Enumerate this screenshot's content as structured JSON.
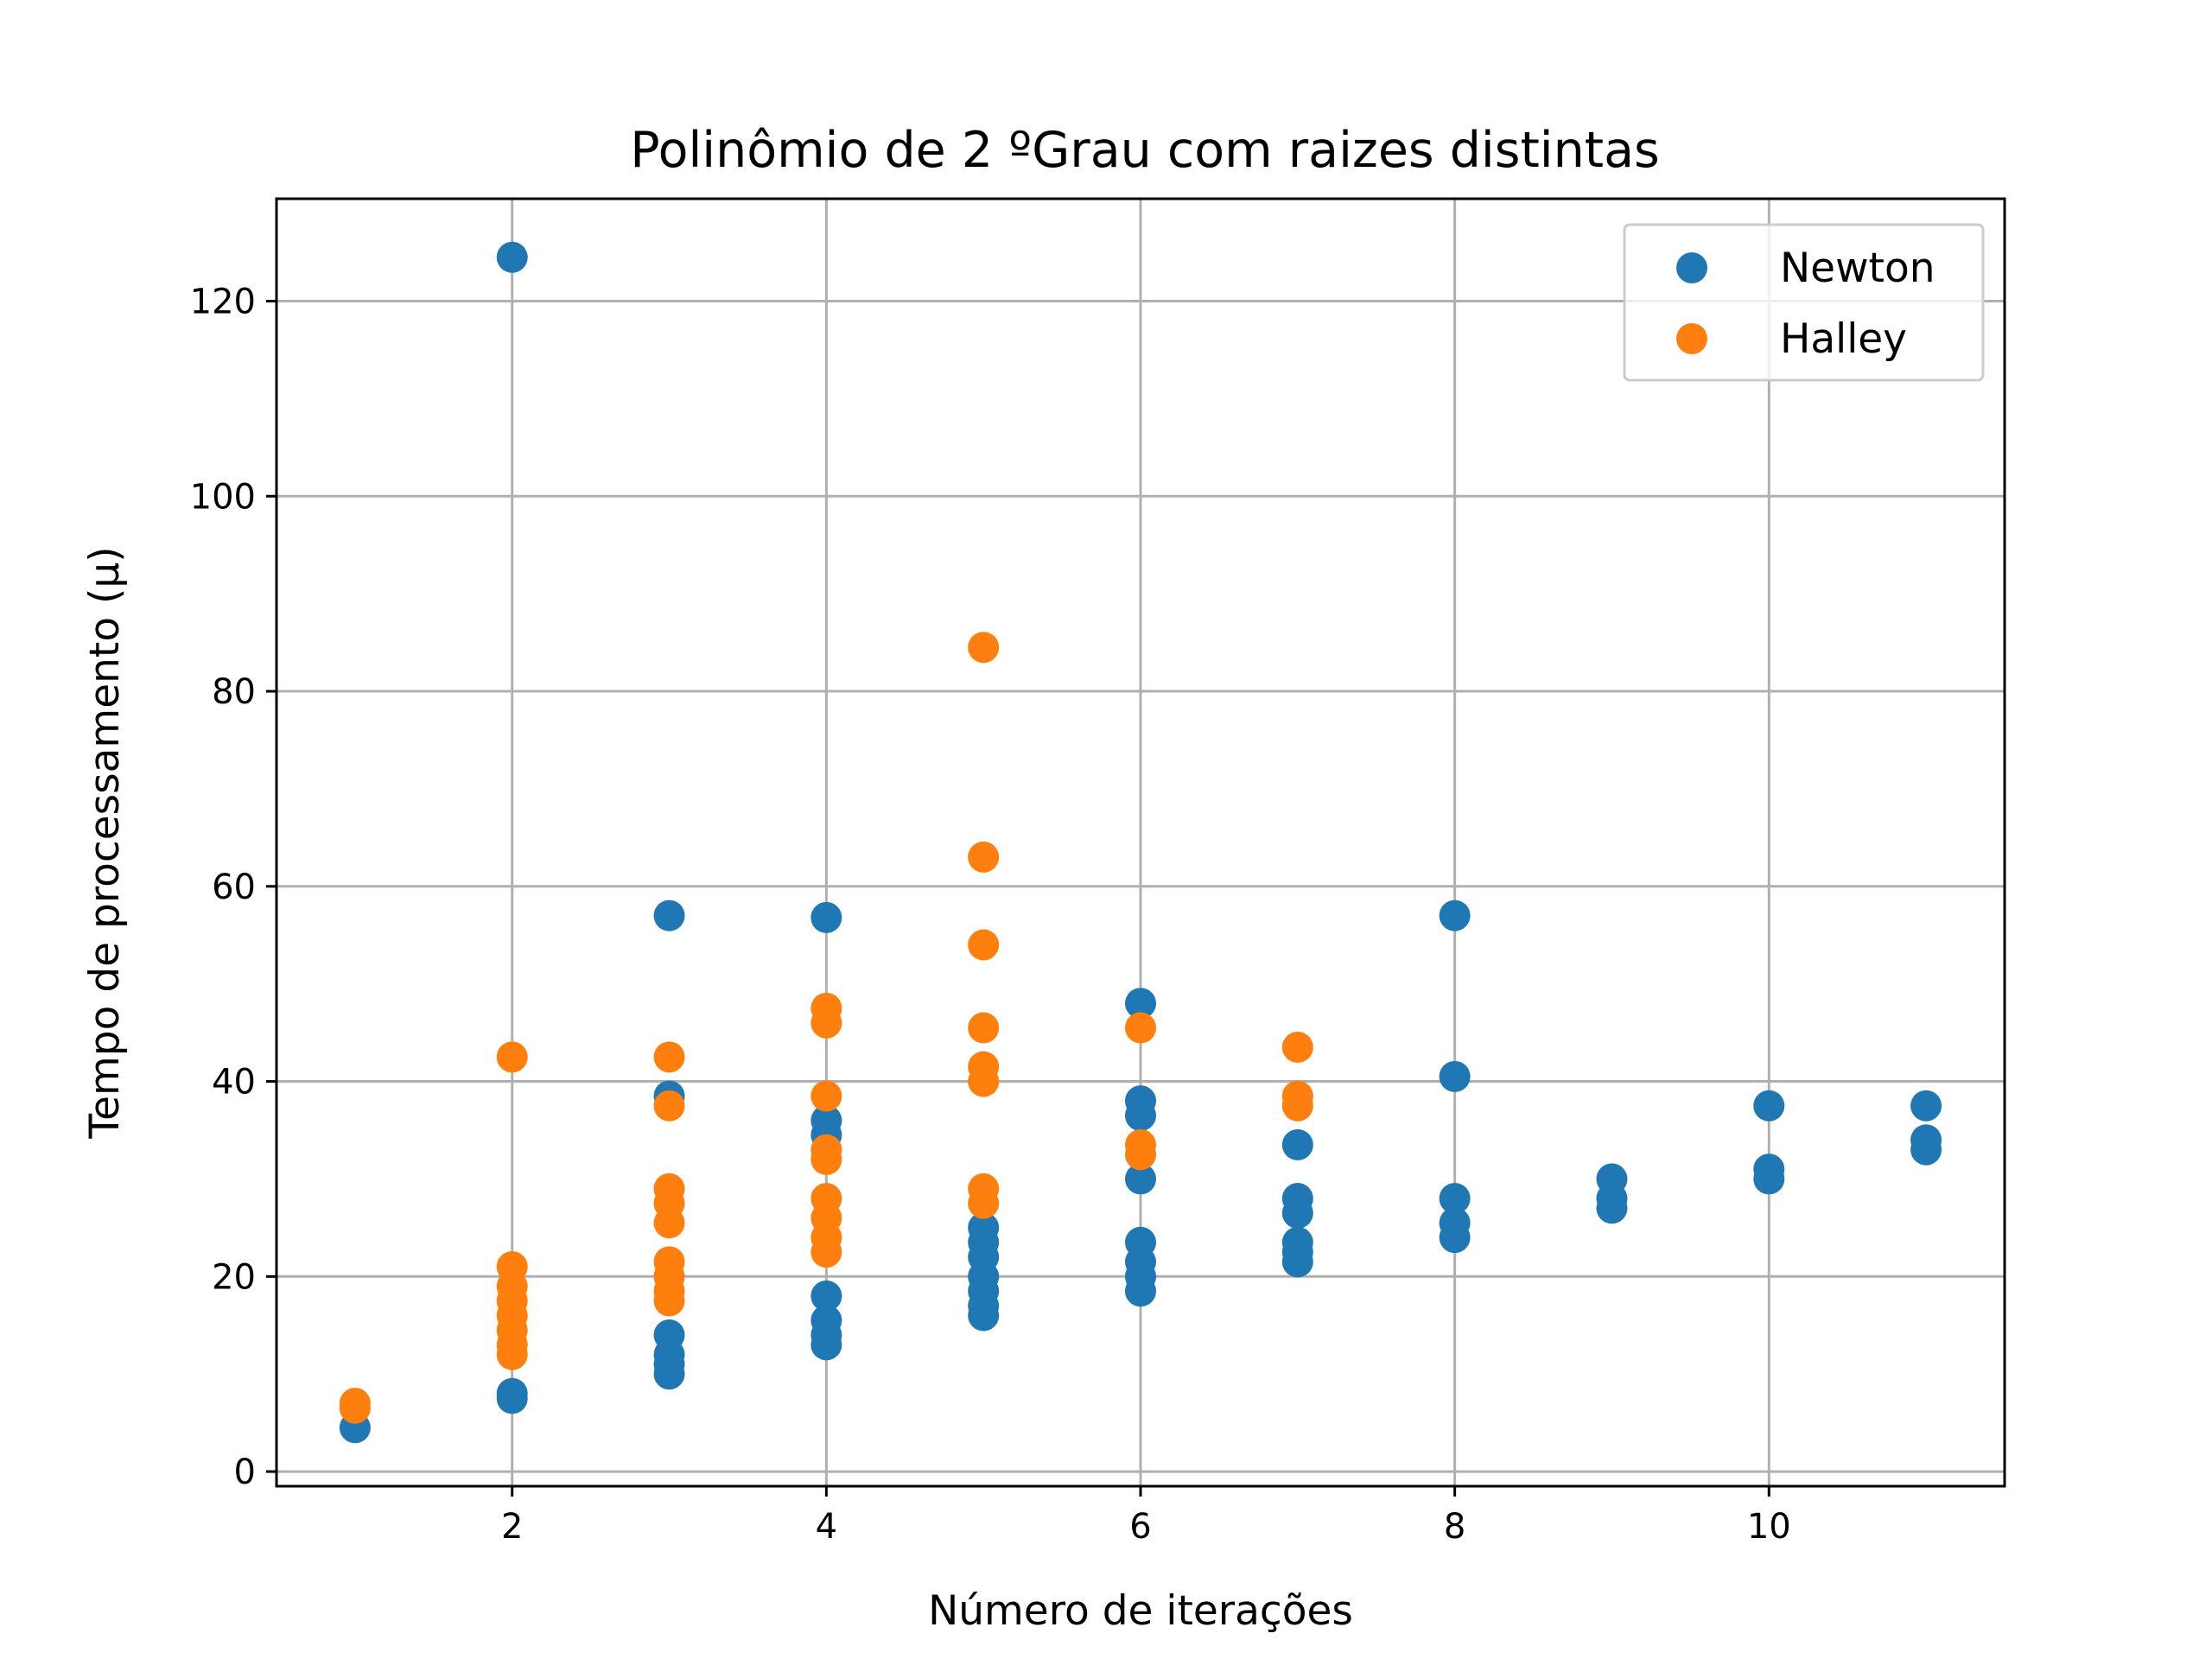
{
  "chart_data": {
    "type": "scatter",
    "title": "Polinômio de 2 ºGrau com raizes distintas",
    "xlabel": "Número de iterações",
    "ylabel": "Tempo de processamento (μ)",
    "xlim": [
      0.5,
      11.5
    ],
    "ylim": [
      -1.5,
      130.5
    ],
    "xticks": [
      2,
      4,
      6,
      8,
      10
    ],
    "yticks": [
      0,
      20,
      40,
      60,
      80,
      100,
      120
    ],
    "grid": true,
    "legend_position": "top-right",
    "series": [
      {
        "name": "Newton",
        "color": "#1f77b4",
        "points": [
          [
            1,
            4.5
          ],
          [
            2,
            124.5
          ],
          [
            2,
            8
          ],
          [
            2,
            7.5
          ],
          [
            3,
            57
          ],
          [
            3,
            38.5
          ],
          [
            3,
            14
          ],
          [
            3,
            12
          ],
          [
            3,
            11
          ],
          [
            3,
            10
          ],
          [
            4,
            56.8
          ],
          [
            4,
            36
          ],
          [
            4,
            34.5
          ],
          [
            4,
            18
          ],
          [
            4,
            15.5
          ],
          [
            4,
            14
          ],
          [
            4,
            13
          ],
          [
            5,
            25
          ],
          [
            5,
            23.5
          ],
          [
            5,
            22
          ],
          [
            5,
            20
          ],
          [
            5,
            18.5
          ],
          [
            5,
            17
          ],
          [
            5,
            16
          ],
          [
            6,
            48
          ],
          [
            6,
            38
          ],
          [
            6,
            36.5
          ],
          [
            6,
            30
          ],
          [
            6,
            23.5
          ],
          [
            6,
            21.5
          ],
          [
            6,
            20
          ],
          [
            6,
            18.5
          ],
          [
            7,
            33.5
          ],
          [
            7,
            28
          ],
          [
            7,
            26.5
          ],
          [
            7,
            23.5
          ],
          [
            7,
            22.5
          ],
          [
            7,
            21.5
          ],
          [
            8,
            57
          ],
          [
            8,
            40.5
          ],
          [
            8,
            28
          ],
          [
            8,
            25.5
          ],
          [
            8,
            24
          ],
          [
            9,
            30
          ],
          [
            9,
            28
          ],
          [
            9,
            27
          ],
          [
            10,
            37.5
          ],
          [
            10,
            31
          ],
          [
            10,
            30
          ],
          [
            11,
            37.5
          ],
          [
            11,
            34
          ],
          [
            11,
            33
          ]
        ]
      },
      {
        "name": "Halley",
        "color": "#ff7f0e",
        "points": [
          [
            1,
            7
          ],
          [
            1,
            6.5
          ],
          [
            2,
            42.5
          ],
          [
            2,
            21
          ],
          [
            2,
            19
          ],
          [
            2,
            17.5
          ],
          [
            2,
            16
          ],
          [
            2,
            14.5
          ],
          [
            2,
            13
          ],
          [
            2,
            12
          ],
          [
            3,
            42.5
          ],
          [
            3,
            37.5
          ],
          [
            3,
            29
          ],
          [
            3,
            27.5
          ],
          [
            3,
            25.5
          ],
          [
            3,
            21.5
          ],
          [
            3,
            20
          ],
          [
            3,
            18.5
          ],
          [
            3,
            17.5
          ],
          [
            4,
            47.5
          ],
          [
            4,
            46
          ],
          [
            4,
            38.5
          ],
          [
            4,
            33
          ],
          [
            4,
            32
          ],
          [
            4,
            28
          ],
          [
            4,
            26
          ],
          [
            4,
            24
          ],
          [
            4,
            22.5
          ],
          [
            5,
            84.5
          ],
          [
            5,
            63
          ],
          [
            5,
            54
          ],
          [
            5,
            45.5
          ],
          [
            5,
            41.5
          ],
          [
            5,
            40
          ],
          [
            5,
            29
          ],
          [
            5,
            27.5
          ],
          [
            6,
            45.5
          ],
          [
            6,
            33.5
          ],
          [
            6,
            32.5
          ],
          [
            7,
            43.5
          ],
          [
            7,
            38.5
          ],
          [
            7,
            37.5
          ]
        ]
      }
    ]
  }
}
